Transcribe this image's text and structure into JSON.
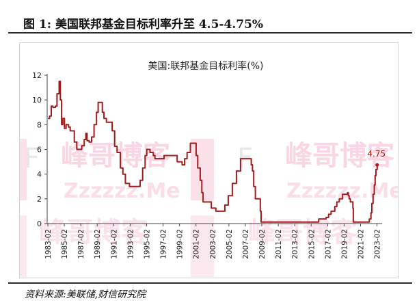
{
  "figure": {
    "title": "图 1:  美国联邦基金目标利率升至 4.5-4.75%",
    "source": "资料来源:美联储,财信研究院"
  },
  "watermark": {
    "brand": "峰哥博客",
    "url": "Zzzzzz.Me",
    "letter": "F",
    "color": "#e94b87"
  },
  "chart_data": {
    "type": "line",
    "title": "美国:联邦基金目标利率(%)",
    "xlabel": "",
    "ylabel": "",
    "ylim": [
      0,
      12
    ],
    "yticks": [
      0,
      2,
      4,
      6,
      8,
      10,
      12
    ],
    "xlim": [
      1983.0,
      2023.7
    ],
    "xticks": [
      "1983-02",
      "1985-02",
      "1987-02",
      "1989-02",
      "1991-02",
      "1993-02",
      "1995-02",
      "1997-02",
      "1999-02",
      "2001-02",
      "2003-02",
      "2005-02",
      "2007-02",
      "2009-02",
      "2011-02",
      "2013-02",
      "2015-02",
      "2017-02",
      "2019-02",
      "2021-02",
      "2023-02"
    ],
    "grid": false,
    "legend": "none",
    "line_color": "#a01b1b",
    "series": [
      {
        "values": [
          [
            1983.1,
            8.5
          ],
          [
            1983.3,
            8.7
          ],
          [
            1983.5,
            9.5
          ],
          [
            1983.7,
            9.4
          ],
          [
            1984.0,
            9.5
          ],
          [
            1984.2,
            10.5
          ],
          [
            1984.45,
            11.5
          ],
          [
            1984.6,
            10.0
          ],
          [
            1984.75,
            8.0
          ],
          [
            1984.9,
            8.5
          ],
          [
            1985.1,
            7.7
          ],
          [
            1985.3,
            8.0
          ],
          [
            1985.6,
            7.8
          ],
          [
            1985.8,
            7.5
          ],
          [
            1986.1,
            7.5
          ],
          [
            1986.3,
            6.6
          ],
          [
            1986.6,
            6.0
          ],
          [
            1986.9,
            6.0
          ],
          [
            1987.2,
            6.3
          ],
          [
            1987.5,
            6.8
          ],
          [
            1987.7,
            7.3
          ],
          [
            1987.85,
            6.7
          ],
          [
            1988.1,
            6.6
          ],
          [
            1988.4,
            7.0
          ],
          [
            1988.7,
            8.0
          ],
          [
            1989.0,
            9.0
          ],
          [
            1989.2,
            9.8
          ],
          [
            1989.45,
            9.8
          ],
          [
            1989.7,
            9.0
          ],
          [
            1989.9,
            8.5
          ],
          [
            1990.2,
            8.2
          ],
          [
            1990.6,
            8.2
          ],
          [
            1990.9,
            7.5
          ],
          [
            1991.2,
            6.25
          ],
          [
            1991.5,
            5.75
          ],
          [
            1991.9,
            4.5
          ],
          [
            1992.2,
            4.0
          ],
          [
            1992.5,
            3.25
          ],
          [
            1993.0,
            3.0
          ],
          [
            1994.0,
            3.0
          ],
          [
            1994.3,
            3.5
          ],
          [
            1994.6,
            4.5
          ],
          [
            1994.9,
            5.5
          ],
          [
            1995.1,
            6.0
          ],
          [
            1995.5,
            5.75
          ],
          [
            1995.9,
            5.5
          ],
          [
            1996.1,
            5.25
          ],
          [
            1997.0,
            5.25
          ],
          [
            1997.2,
            5.5
          ],
          [
            1998.6,
            5.5
          ],
          [
            1998.8,
            5.0
          ],
          [
            1999.4,
            4.75
          ],
          [
            1999.7,
            5.25
          ],
          [
            2000.0,
            5.75
          ],
          [
            2000.4,
            6.5
          ],
          [
            2000.9,
            6.5
          ],
          [
            2001.1,
            5.5
          ],
          [
            2001.3,
            4.5
          ],
          [
            2001.6,
            3.5
          ],
          [
            2001.8,
            2.5
          ],
          [
            2001.95,
            1.75
          ],
          [
            2002.8,
            1.75
          ],
          [
            2002.95,
            1.25
          ],
          [
            2003.5,
            1.0
          ],
          [
            2004.4,
            1.0
          ],
          [
            2004.6,
            1.5
          ],
          [
            2005.0,
            2.25
          ],
          [
            2005.5,
            3.25
          ],
          [
            2006.0,
            4.25
          ],
          [
            2006.5,
            5.25
          ],
          [
            2007.6,
            5.25
          ],
          [
            2007.8,
            4.75
          ],
          [
            2007.95,
            4.25
          ],
          [
            2008.1,
            3.0
          ],
          [
            2008.3,
            2.0
          ],
          [
            2008.8,
            2.0
          ],
          [
            2008.9,
            1.0
          ],
          [
            2009.0,
            0.125
          ],
          [
            2015.9,
            0.125
          ],
          [
            2016.0,
            0.375
          ],
          [
            2016.9,
            0.5
          ],
          [
            2017.2,
            0.75
          ],
          [
            2017.5,
            1.0
          ],
          [
            2017.95,
            1.375
          ],
          [
            2018.2,
            1.75
          ],
          [
            2018.5,
            2.0
          ],
          [
            2018.9,
            2.375
          ],
          [
            2019.5,
            2.5
          ],
          [
            2019.6,
            2.25
          ],
          [
            2019.7,
            2.0
          ],
          [
            2019.85,
            1.75
          ],
          [
            2020.15,
            1.25
          ],
          [
            2020.2,
            0.125
          ],
          [
            2022.15,
            0.375
          ],
          [
            2022.35,
            0.875
          ],
          [
            2022.45,
            1.625
          ],
          [
            2022.6,
            2.375
          ],
          [
            2022.75,
            3.125
          ],
          [
            2022.85,
            3.875
          ],
          [
            2022.95,
            4.375
          ],
          [
            2023.1,
            4.625
          ]
        ]
      }
    ],
    "annotations": [
      {
        "text": "4.75",
        "x": 2023.1,
        "y": 4.75,
        "color": "#a01b1b"
      }
    ]
  }
}
